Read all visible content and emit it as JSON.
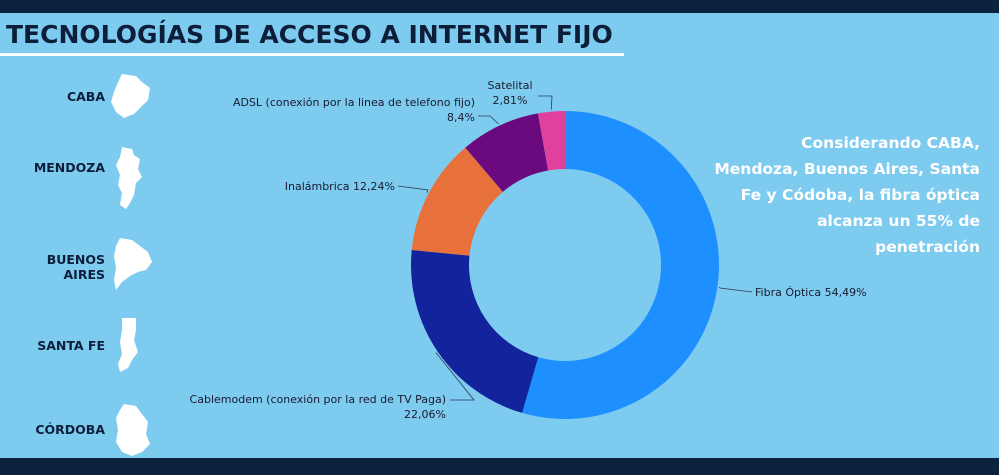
{
  "title": "TECNOLOGÍAS DE ACCESO A INTERNET FIJO",
  "provinces": [
    "CABA",
    "MENDOZA",
    "BUENOS AIRES",
    "SANTA FE",
    "CÓRDOBA"
  ],
  "note": "Considerando CABA, Mendoza, Buenos Aires, Santa Fe y Códoba, la fibra óptica alcanza un 55% de penetración",
  "colors": {
    "background": "#7ecbf0",
    "bars": "#0c2340"
  },
  "chart_data": {
    "type": "pie",
    "donut": true,
    "start": "top",
    "direction": "clockwise",
    "slices": [
      {
        "label": "Fibra Óptica",
        "value": 54.49,
        "display": "54,49%",
        "color": "#1e8fff"
      },
      {
        "label": "Cablemodem (conexión por la red de TV Paga)",
        "value": 22.06,
        "display": "22,06%",
        "color": "#13239b"
      },
      {
        "label": "Inalámbrica",
        "value": 12.24,
        "display": "12,24%",
        "color": "#e8703a"
      },
      {
        "label": "ADSL (conexión por la linea de telefono fijo)",
        "value": 8.4,
        "display": "8,4%",
        "color": "#6b0a7e"
      },
      {
        "label": "Satelital",
        "value": 2.81,
        "display": "2,81%",
        "color": "#e0419e"
      }
    ]
  }
}
